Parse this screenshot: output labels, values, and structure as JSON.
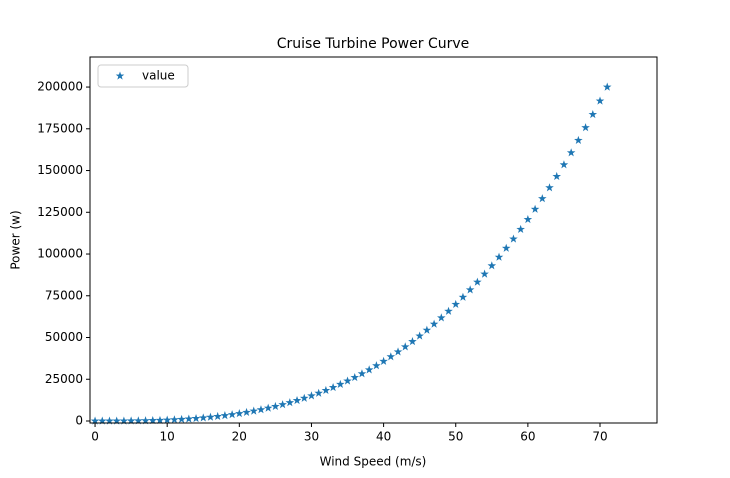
{
  "chart_data": {
    "type": "scatter",
    "title": "Cruise Turbine Power Curve",
    "xlabel": "Wind Speed (m/s)",
    "ylabel": "Power (w)",
    "x": [
      0,
      1,
      2,
      3,
      4,
      5,
      6,
      7,
      8,
      9,
      10,
      11,
      12,
      13,
      14,
      15,
      16,
      17,
      18,
      19,
      20,
      21,
      22,
      23,
      24,
      25,
      26,
      27,
      28,
      29,
      30,
      31,
      32,
      33,
      34,
      35,
      36,
      37,
      38,
      39,
      40,
      41,
      42,
      43,
      44,
      45,
      46,
      47,
      48,
      49,
      50,
      51,
      52,
      53,
      54,
      55,
      56,
      57,
      58,
      59,
      60,
      61,
      62,
      63,
      64,
      65,
      66,
      67,
      68,
      69,
      70,
      71
    ],
    "series": [
      {
        "name": "value",
        "color": "#1f77b4",
        "marker": "star",
        "values": [
          0,
          1,
          4,
          15,
          36,
          70,
          121,
          192,
          286,
          407,
          559,
          744,
          966,
          1228,
          1533,
          1886,
          2289,
          2745,
          3259,
          3833,
          4470,
          5175,
          5950,
          6799,
          7725,
          8731,
          9821,
          10999,
          12267,
          13629,
          15088,
          16647,
          18311,
          20082,
          21963,
          23959,
          26071,
          28305,
          30663,
          33148,
          35763,
          38513,
          41400,
          44428,
          47600,
          50920,
          54390,
          58015,
          61797,
          65741,
          69850,
          74126,
          78574,
          83197,
          87999,
          92970,
          98133,
          103475,
          109001,
          114766,
          120701,
          126837,
          133178,
          139726,
          146486,
          153460,
          160653,
          168066,
          175705,
          183571,
          191668,
          200001
        ]
      }
    ],
    "xlim": [
      -0.7,
      77.9
    ],
    "ylim": [
      -1200,
      218000
    ],
    "xticks": [
      0,
      10,
      20,
      30,
      40,
      50,
      60,
      70
    ],
    "yticks": [
      0,
      25000,
      50000,
      75000,
      100000,
      125000,
      150000,
      175000,
      200000
    ],
    "legend": "upper left",
    "grid": false
  }
}
